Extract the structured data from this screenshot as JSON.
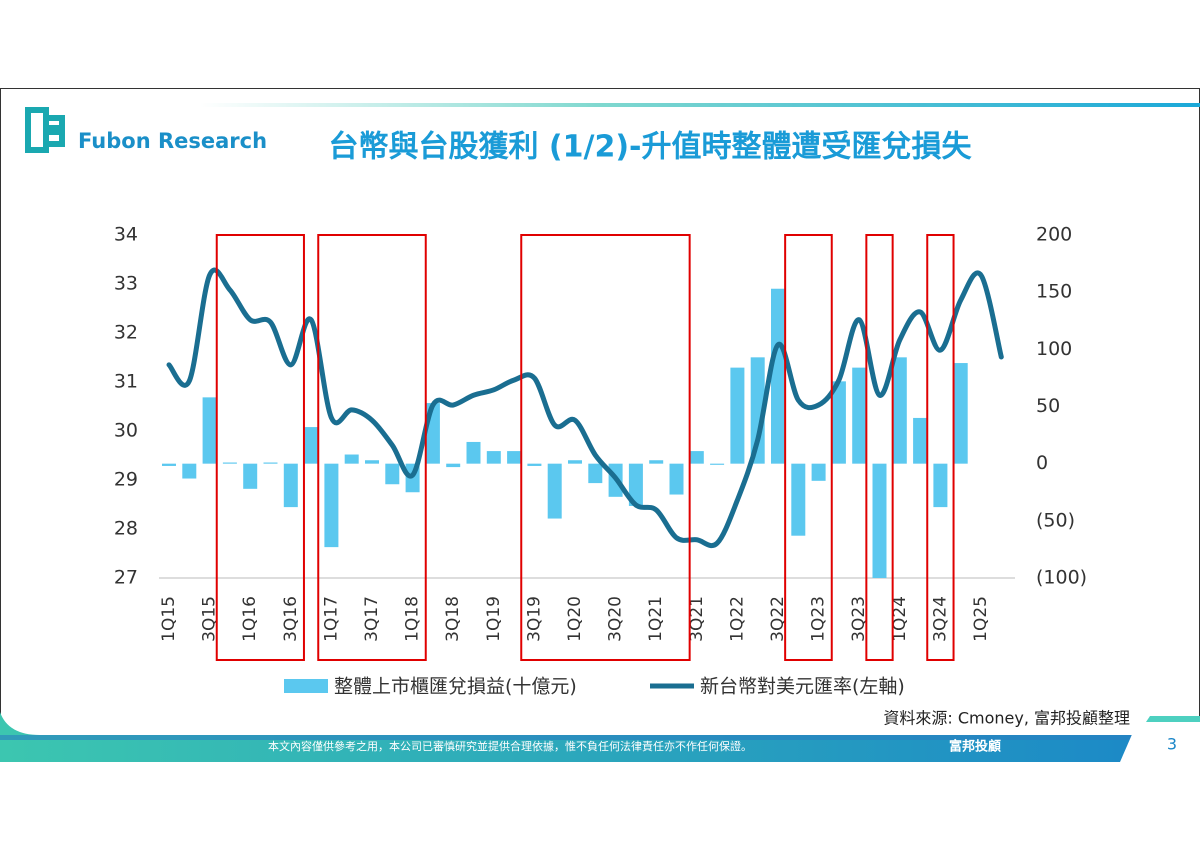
{
  "logo": "Fubon Research",
  "title": "台幣與台股獲利 (1/2)-升值時整體遭受匯兌損失",
  "source": "資料來源: Cmoney, 富邦投顧整理",
  "footer": {
    "disclaimer": "本文內容僅供參考之用，本公司已審慎研究並提供合理依據，惟不負任何法律責任亦不作任何保證。",
    "brand": "富邦投顧",
    "page": "3"
  },
  "chart_data": {
    "type": "bar_line",
    "categories": [
      "1Q15",
      null,
      "3Q15",
      null,
      "1Q16",
      null,
      "3Q16",
      null,
      "1Q17",
      null,
      "3Q17",
      null,
      "1Q18",
      null,
      "3Q18",
      null,
      "1Q19",
      null,
      "3Q19",
      null,
      "1Q20",
      null,
      "3Q20",
      null,
      "1Q21",
      null,
      "3Q21",
      null,
      "1Q22",
      null,
      "3Q22",
      null,
      "1Q23",
      null,
      "3Q23",
      null,
      "1Q24",
      null,
      "3Q24",
      null,
      "1Q25",
      null
    ],
    "series": [
      {
        "name": "整體上市櫃匯兌損益(十億元)",
        "type": "bar",
        "axis": "y2",
        "color": "#5bc8ef",
        "values": [
          -2,
          -13,
          58,
          1,
          -22,
          1,
          -38,
          32,
          -73,
          8,
          3,
          -18,
          -25,
          53,
          -3,
          19,
          11,
          11,
          -2,
          -48,
          3,
          -17,
          -29,
          -37,
          3,
          -27,
          11,
          -1,
          84,
          93,
          153,
          -63,
          -15,
          72,
          84,
          -100,
          93,
          40,
          -38,
          88,
          null,
          null
        ]
      },
      {
        "name": "新台幣對美元匯率(左軸)",
        "type": "line",
        "axis": "y",
        "color": "#1a6e91",
        "values": [
          31.35,
          31.02,
          33.18,
          32.88,
          32.27,
          32.22,
          31.35,
          32.27,
          30.27,
          30.43,
          30.22,
          29.71,
          29.1,
          30.53,
          30.53,
          30.73,
          30.84,
          31.04,
          31.08,
          30.12,
          30.22,
          29.51,
          29.04,
          28.49,
          28.39,
          27.82,
          27.78,
          27.71,
          28.59,
          29.82,
          31.76,
          30.63,
          30.53,
          31.04,
          32.27,
          30.73,
          31.86,
          32.43,
          31.65,
          32.67,
          33.18,
          31.51
        ]
      }
    ],
    "ylim": [
      27,
      34
    ],
    "yticks": [
      27,
      28,
      29,
      30,
      31,
      32,
      33,
      34
    ],
    "y2lim": [
      -100,
      200
    ],
    "y2ticks": [
      {
        "value": -100,
        "label": "(100)"
      },
      {
        "value": -50,
        "label": "(50)"
      },
      0,
      50,
      100,
      150,
      200
    ],
    "negative_tick_color": "#c0392b",
    "highlights": [
      [
        3,
        6
      ],
      [
        8,
        12
      ],
      [
        18,
        25
      ],
      [
        31,
        32
      ],
      [
        35,
        35
      ],
      [
        38,
        38
      ]
    ],
    "highlight_color": "#e00000",
    "legend": "bottom"
  }
}
